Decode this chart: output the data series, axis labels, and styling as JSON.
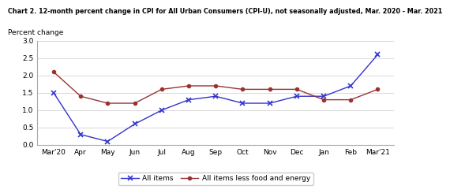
{
  "title": "Chart 2. 12-month percent change in CPI for All Urban Consumers (CPI-U), not seasonally adjusted, Mar. 2020 - Mar. 2021",
  "ylabel": "Percent change",
  "x_labels": [
    "Mar'20",
    "Apr",
    "May",
    "Jun",
    "Jul",
    "Aug",
    "Sep",
    "Oct",
    "Nov",
    "Dec",
    "Jan",
    "Feb",
    "Mar'21"
  ],
  "all_items": [
    1.5,
    0.3,
    0.1,
    0.6,
    1.0,
    1.3,
    1.4,
    1.2,
    1.2,
    1.4,
    1.4,
    1.7,
    2.6
  ],
  "all_items_less": [
    2.1,
    1.4,
    1.2,
    1.2,
    1.6,
    1.7,
    1.7,
    1.6,
    1.6,
    1.6,
    1.3,
    1.3,
    1.6
  ],
  "ylim": [
    0.0,
    3.0
  ],
  "yticks": [
    0.0,
    0.5,
    1.0,
    1.5,
    2.0,
    2.5,
    3.0
  ],
  "all_items_color": "#3333cc",
  "all_items_less_color": "#993333",
  "bg_color": "#ffffff",
  "legend_labels": [
    "All items",
    "All items less food and energy"
  ],
  "title_fontsize": 5.8,
  "ylabel_fontsize": 6.5,
  "tick_fontsize": 6.5,
  "legend_fontsize": 6.5
}
